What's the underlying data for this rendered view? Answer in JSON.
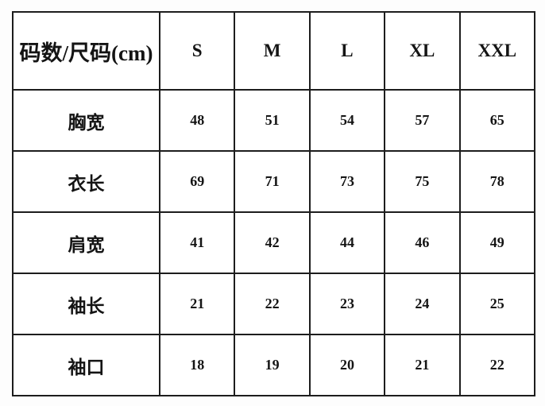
{
  "chart_data": {
    "type": "table",
    "title": "码数/尺码(cm)",
    "corner_header": "码数/尺码(cm)",
    "columns": [
      "S",
      "M",
      "L",
      "XL",
      "XXL"
    ],
    "rows": [
      {
        "label": "胸宽",
        "values": [
          48,
          51,
          54,
          57,
          65
        ]
      },
      {
        "label": "衣长",
        "values": [
          69,
          71,
          73,
          75,
          78
        ]
      },
      {
        "label": "肩宽",
        "values": [
          41,
          42,
          44,
          46,
          49
        ]
      },
      {
        "label": "袖长",
        "values": [
          21,
          22,
          23,
          24,
          25
        ]
      },
      {
        "label": "袖口",
        "values": [
          18,
          19,
          20,
          21,
          22
        ]
      }
    ],
    "units": "cm",
    "border_color": "#1d1d1d",
    "background": "#ffffff",
    "layout": {
      "header_row_height": 98,
      "data_row_height": 77,
      "label_col_width": 185
    }
  }
}
